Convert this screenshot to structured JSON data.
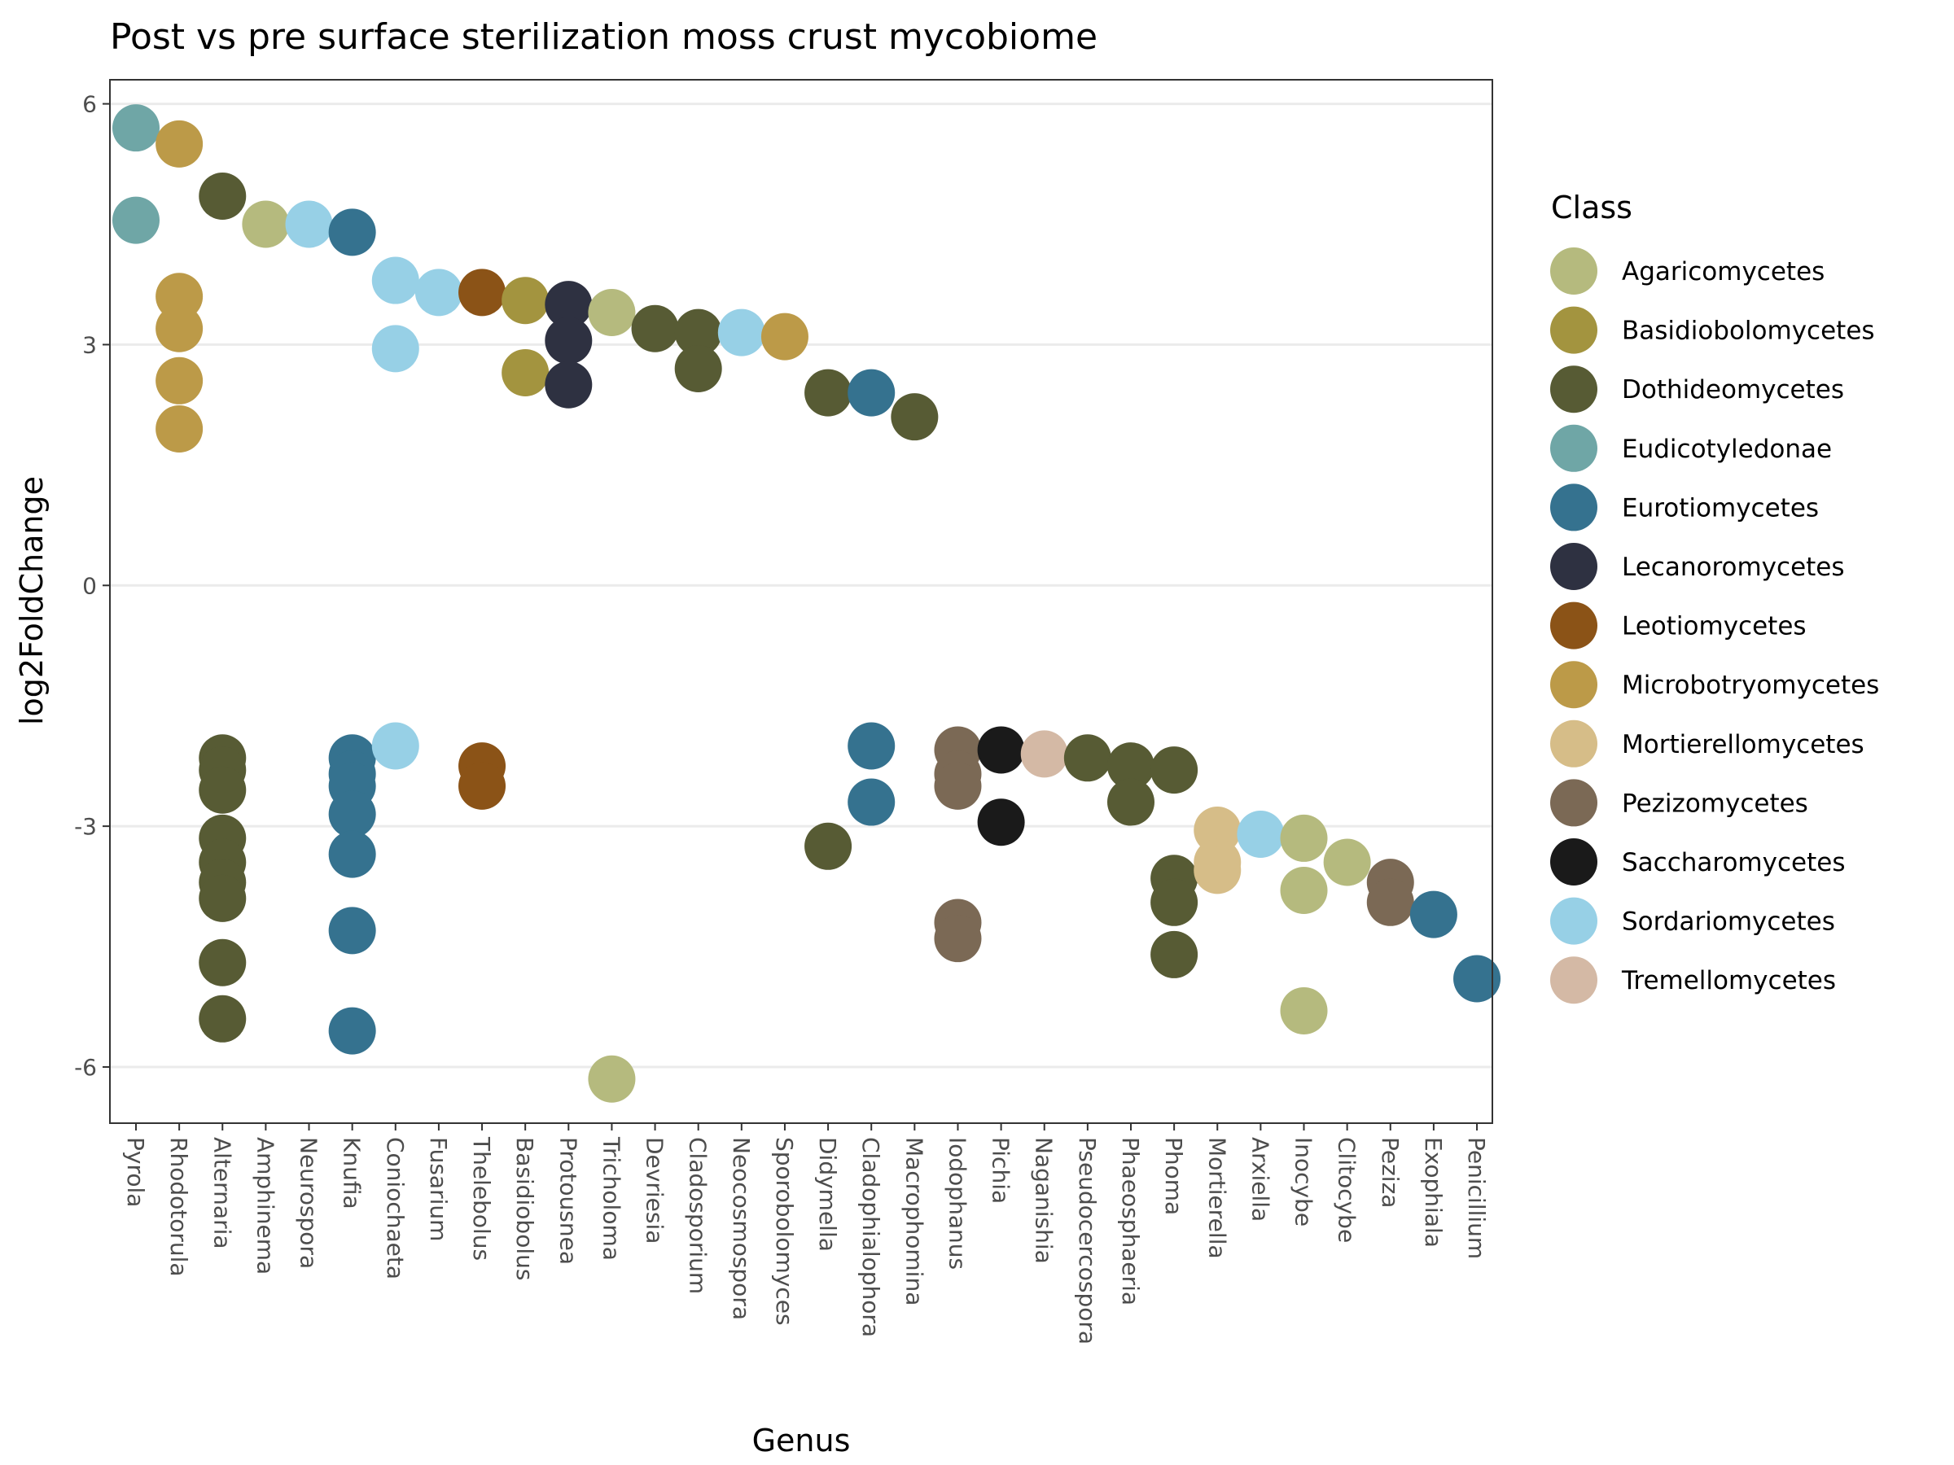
{
  "chart_data": {
    "type": "scatter",
    "title": "Post vs pre surface sterilization moss crust mycobiome",
    "xlabel": "Genus",
    "ylabel": "log2FoldChange",
    "ylim": [
      -6.7,
      6.3
    ],
    "yticks": [
      6,
      3,
      0,
      -3,
      -6
    ],
    "grid": true,
    "legend": {
      "title": "Class",
      "position": "right"
    },
    "categories": [
      "Pyrola",
      "Rhodotorula",
      "Alternaria",
      "Amphinema",
      "Neurospora",
      "Knufia",
      "Coniochaeta",
      "Fusarium",
      "Thelebolus",
      "Basidiobolus",
      "Protousnea",
      "Tricholoma",
      "Devriesia",
      "Cladosporium",
      "Neocosmospora",
      "Sporobolomyces",
      "Didymella",
      "Cladophialophora",
      "Macrophomina",
      "Iodophanus",
      "Pichia",
      "Naganishia",
      "Pseudocercospora",
      "Phaeosphaeria",
      "Phoma",
      "Mortierella",
      "Arxiella",
      "Inocybe",
      "Clitocybe",
      "Peziza",
      "Exophiala",
      "Penicillium"
    ],
    "classes": [
      {
        "name": "Agaricomycetes",
        "color": "#B5BA7E"
      },
      {
        "name": "Basidiobolomycetes",
        "color": "#A3943F"
      },
      {
        "name": "Dothideomycetes",
        "color": "#575B34"
      },
      {
        "name": "Eudicotyledonae",
        "color": "#6FA6A6"
      },
      {
        "name": "Eurotiomycetes",
        "color": "#35728F"
      },
      {
        "name": "Lecanoromycetes",
        "color": "#2E3141"
      },
      {
        "name": "Leotiomycetes",
        "color": "#8B5317"
      },
      {
        "name": "Microbotryomycetes",
        "color": "#BC9A48"
      },
      {
        "name": "Mortierellomycetes",
        "color": "#D6BD88"
      },
      {
        "name": "Pezizomycetes",
        "color": "#7B6955"
      },
      {
        "name": "Saccharomycetes",
        "color": "#1A1A1A"
      },
      {
        "name": "Sordariomycetes",
        "color": "#97D0E6"
      },
      {
        "name": "Tremellomycetes",
        "color": "#D4B9A5"
      }
    ],
    "points": [
      {
        "genus": "Pyrola",
        "class": "Eudicotyledonae",
        "y": 5.7
      },
      {
        "genus": "Pyrola",
        "class": "Eudicotyledonae",
        "y": 4.55
      },
      {
        "genus": "Rhodotorula",
        "class": "Microbotryomycetes",
        "y": 5.5
      },
      {
        "genus": "Rhodotorula",
        "class": "Microbotryomycetes",
        "y": 3.6
      },
      {
        "genus": "Rhodotorula",
        "class": "Microbotryomycetes",
        "y": 3.2
      },
      {
        "genus": "Rhodotorula",
        "class": "Microbotryomycetes",
        "y": 2.55
      },
      {
        "genus": "Rhodotorula",
        "class": "Microbotryomycetes",
        "y": 1.95
      },
      {
        "genus": "Alternaria",
        "class": "Dothideomycetes",
        "y": -2.15
      },
      {
        "genus": "Alternaria",
        "class": "Dothideomycetes",
        "y": -2.3
      },
      {
        "genus": "Alternaria",
        "class": "Dothideomycetes",
        "y": -2.55
      },
      {
        "genus": "Alternaria",
        "class": "Dothideomycetes",
        "y": -3.15
      },
      {
        "genus": "Alternaria",
        "class": "Dothideomycetes",
        "y": -3.45
      },
      {
        "genus": "Alternaria",
        "class": "Dothideomycetes",
        "y": -3.7
      },
      {
        "genus": "Alternaria",
        "class": "Dothideomycetes",
        "y": -3.9
      },
      {
        "genus": "Alternaria",
        "class": "Dothideomycetes",
        "y": -4.7
      },
      {
        "genus": "Alternaria",
        "class": "Dothideomycetes",
        "y": -5.4
      },
      {
        "genus": "Alternaria",
        "class": "Dothideomycetes",
        "y": 4.85
      },
      {
        "genus": "Amphinema",
        "class": "Agaricomycetes",
        "y": 4.5
      },
      {
        "genus": "Neurospora",
        "class": "Sordariomycetes",
        "y": 4.5
      },
      {
        "genus": "Knufia",
        "class": "Eurotiomycetes",
        "y": 4.4
      },
      {
        "genus": "Knufia",
        "class": "Eurotiomycetes",
        "y": -2.15
      },
      {
        "genus": "Knufia",
        "class": "Eurotiomycetes",
        "y": -2.35
      },
      {
        "genus": "Knufia",
        "class": "Eurotiomycetes",
        "y": -2.5
      },
      {
        "genus": "Knufia",
        "class": "Eurotiomycetes",
        "y": -2.85
      },
      {
        "genus": "Knufia",
        "class": "Eurotiomycetes",
        "y": -3.35
      },
      {
        "genus": "Knufia",
        "class": "Eurotiomycetes",
        "y": -4.3
      },
      {
        "genus": "Knufia",
        "class": "Eurotiomycetes",
        "y": -5.55
      },
      {
        "genus": "Coniochaeta",
        "class": "Sordariomycetes",
        "y": 3.8
      },
      {
        "genus": "Coniochaeta",
        "class": "Sordariomycetes",
        "y": 2.95
      },
      {
        "genus": "Coniochaeta",
        "class": "Sordariomycetes",
        "y": -2.0
      },
      {
        "genus": "Fusarium",
        "class": "Sordariomycetes",
        "y": 3.65
      },
      {
        "genus": "Thelebolus",
        "class": "Leotiomycetes",
        "y": 3.65
      },
      {
        "genus": "Thelebolus",
        "class": "Leotiomycetes",
        "y": -2.25
      },
      {
        "genus": "Thelebolus",
        "class": "Leotiomycetes",
        "y": -2.5
      },
      {
        "genus": "Basidiobolus",
        "class": "Basidiobolomycetes",
        "y": 3.55
      },
      {
        "genus": "Basidiobolus",
        "class": "Basidiobolomycetes",
        "y": 2.65
      },
      {
        "genus": "Protousnea",
        "class": "Lecanoromycetes",
        "y": 3.5
      },
      {
        "genus": "Protousnea",
        "class": "Lecanoromycetes",
        "y": 3.05
      },
      {
        "genus": "Protousnea",
        "class": "Lecanoromycetes",
        "y": 2.5
      },
      {
        "genus": "Tricholoma",
        "class": "Agaricomycetes",
        "y": 3.4
      },
      {
        "genus": "Tricholoma",
        "class": "Agaricomycetes",
        "y": -6.15
      },
      {
        "genus": "Devriesia",
        "class": "Dothideomycetes",
        "y": 3.2
      },
      {
        "genus": "Cladosporium",
        "class": "Dothideomycetes",
        "y": 3.15
      },
      {
        "genus": "Cladosporium",
        "class": "Dothideomycetes",
        "y": 2.7
      },
      {
        "genus": "Neocosmospora",
        "class": "Sordariomycetes",
        "y": 3.15
      },
      {
        "genus": "Sporobolomyces",
        "class": "Microbotryomycetes",
        "y": 3.1
      },
      {
        "genus": "Didymella",
        "class": "Dothideomycetes",
        "y": 2.4
      },
      {
        "genus": "Didymella",
        "class": "Dothideomycetes",
        "y": -3.25
      },
      {
        "genus": "Cladophialophora",
        "class": "Eurotiomycetes",
        "y": 2.4
      },
      {
        "genus": "Cladophialophora",
        "class": "Eurotiomycetes",
        "y": -2.0
      },
      {
        "genus": "Cladophialophora",
        "class": "Eurotiomycetes",
        "y": -2.7
      },
      {
        "genus": "Macrophomina",
        "class": "Dothideomycetes",
        "y": 2.1
      },
      {
        "genus": "Iodophanus",
        "class": "Pezizomycetes",
        "y": -2.05
      },
      {
        "genus": "Iodophanus",
        "class": "Pezizomycetes",
        "y": -2.35
      },
      {
        "genus": "Iodophanus",
        "class": "Pezizomycetes",
        "y": -2.5
      },
      {
        "genus": "Iodophanus",
        "class": "Pezizomycetes",
        "y": -4.2
      },
      {
        "genus": "Iodophanus",
        "class": "Pezizomycetes",
        "y": -4.4
      },
      {
        "genus": "Pichia",
        "class": "Saccharomycetes",
        "y": -2.05
      },
      {
        "genus": "Pichia",
        "class": "Saccharomycetes",
        "y": -2.95
      },
      {
        "genus": "Naganishia",
        "class": "Tremellomycetes",
        "y": -2.1
      },
      {
        "genus": "Pseudocercospora",
        "class": "Dothideomycetes",
        "y": -2.15
      },
      {
        "genus": "Phaeosphaeria",
        "class": "Dothideomycetes",
        "y": -2.25
      },
      {
        "genus": "Phaeosphaeria",
        "class": "Dothideomycetes",
        "y": -2.7
      },
      {
        "genus": "Phoma",
        "class": "Dothideomycetes",
        "y": -2.3
      },
      {
        "genus": "Phoma",
        "class": "Dothideomycetes",
        "y": -3.65
      },
      {
        "genus": "Phoma",
        "class": "Dothideomycetes",
        "y": -3.95
      },
      {
        "genus": "Phoma",
        "class": "Dothideomycetes",
        "y": -4.6
      },
      {
        "genus": "Mortierella",
        "class": "Mortierellomycetes",
        "y": -3.05
      },
      {
        "genus": "Mortierella",
        "class": "Mortierellomycetes",
        "y": -3.45
      },
      {
        "genus": "Mortierella",
        "class": "Mortierellomycetes",
        "y": -3.55
      },
      {
        "genus": "Arxiella",
        "class": "Sordariomycetes",
        "y": -3.1
      },
      {
        "genus": "Inocybe",
        "class": "Agaricomycetes",
        "y": -3.15
      },
      {
        "genus": "Inocybe",
        "class": "Agaricomycetes",
        "y": -3.8
      },
      {
        "genus": "Inocybe",
        "class": "Agaricomycetes",
        "y": -5.3
      },
      {
        "genus": "Clitocybe",
        "class": "Agaricomycetes",
        "y": -3.45
      },
      {
        "genus": "Peziza",
        "class": "Pezizomycetes",
        "y": -3.7
      },
      {
        "genus": "Peziza",
        "class": "Pezizomycetes",
        "y": -3.95
      },
      {
        "genus": "Exophiala",
        "class": "Eurotiomycetes",
        "y": -4.1
      },
      {
        "genus": "Penicillium",
        "class": "Eurotiomycetes",
        "y": -4.9
      }
    ]
  }
}
